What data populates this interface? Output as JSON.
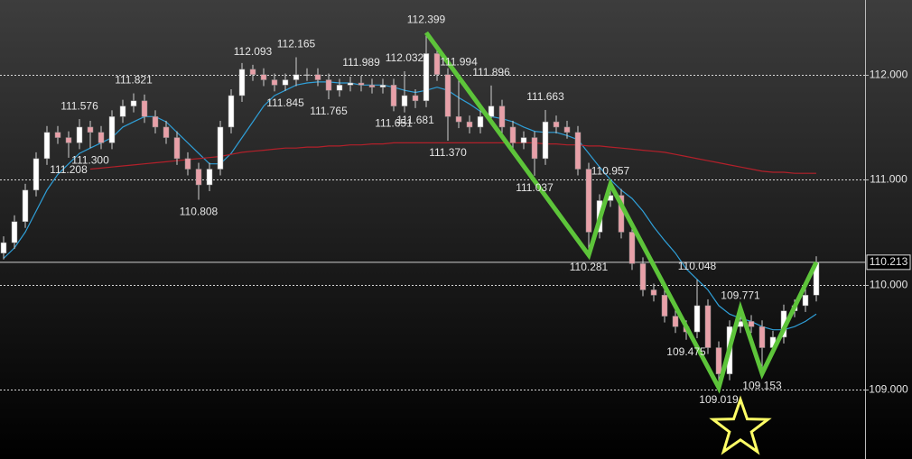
{
  "chart_data": {
    "type": "candlestick",
    "ylim": [
      108.34,
      112.71
    ],
    "xlim": [
      -0.333,
      79.5
    ],
    "yticks": [
      {
        "value": 109,
        "label": "109.000"
      },
      {
        "value": 110,
        "label": "110.000"
      },
      {
        "value": 111,
        "label": "111.000"
      },
      {
        "value": 112,
        "label": "112.000"
      }
    ],
    "grid": true,
    "up_color": "#ffffff",
    "down_color": "#e8a0a8",
    "open": [
      110.3,
      110.4,
      110.6,
      110.9,
      111.2,
      111.45,
      111.4,
      111.35,
      111.5,
      111.45,
      111.35,
      111.6,
      111.7,
      111.75,
      111.6,
      111.5,
      111.4,
      111.2,
      111.1,
      110.95,
      111.1,
      111.5,
      111.8,
      112.05,
      112.0,
      111.95,
      111.9,
      111.95,
      112.0,
      112.0,
      111.95,
      111.85,
      111.9,
      111.92,
      111.9,
      111.88,
      111.9,
      111.7,
      111.8,
      111.75,
      112.2,
      112.0,
      111.6,
      111.55,
      111.5,
      111.6,
      111.7,
      111.5,
      111.35,
      111.4,
      111.2,
      111.55,
      111.5,
      111.45,
      111.1,
      110.5,
      110.8,
      110.85,
      110.5,
      110.2,
      109.95,
      109.9,
      109.7,
      109.6,
      109.55,
      109.8,
      109.4,
      109.15,
      109.6,
      109.65,
      109.6,
      109.4,
      109.5,
      109.75,
      109.8,
      109.9
    ],
    "high": [
      110.46,
      110.66,
      110.96,
      111.26,
      111.51,
      111.51,
      111.46,
      111.576,
      111.56,
      111.51,
      111.66,
      111.76,
      111.821,
      111.81,
      111.66,
      111.56,
      111.46,
      111.26,
      111.16,
      111.16,
      111.56,
      111.86,
      112.11,
      112.093,
      112.06,
      112.01,
      112.01,
      112.165,
      112.06,
      112.06,
      112.01,
      111.96,
      111.98,
      111.989,
      111.96,
      111.96,
      111.96,
      112.032,
      111.86,
      112.399,
      112.26,
      112.06,
      111.994,
      111.61,
      111.66,
      111.896,
      111.76,
      111.56,
      111.46,
      111.46,
      111.663,
      111.61,
      111.56,
      111.51,
      111.16,
      110.86,
      110.957,
      110.91,
      110.56,
      110.26,
      110.01,
      109.96,
      109.76,
      109.66,
      110.048,
      109.86,
      109.46,
      109.66,
      109.771,
      109.71,
      109.66,
      109.56,
      109.81,
      109.86,
      109.96,
      110.27
    ],
    "low": [
      110.24,
      110.34,
      110.54,
      110.84,
      111.14,
      111.34,
      111.208,
      111.29,
      111.3,
      111.29,
      111.29,
      111.54,
      111.64,
      111.54,
      111.44,
      111.34,
      111.14,
      111.04,
      110.808,
      110.89,
      111.04,
      111.44,
      111.74,
      111.94,
      111.89,
      111.84,
      111.845,
      111.89,
      111.94,
      111.89,
      111.765,
      111.79,
      111.84,
      111.84,
      111.82,
      111.82,
      111.651,
      111.64,
      111.681,
      111.69,
      111.94,
      111.37,
      111.49,
      111.44,
      111.44,
      111.54,
      111.44,
      111.29,
      111.29,
      111.037,
      111.14,
      111.44,
      111.39,
      111.04,
      110.281,
      110.44,
      110.74,
      110.44,
      110.14,
      109.89,
      109.84,
      109.64,
      109.54,
      109.475,
      109.49,
      109.34,
      109.019,
      109.09,
      109.54,
      109.54,
      109.153,
      109.34,
      109.44,
      109.69,
      109.74,
      109.84
    ],
    "close": [
      110.4,
      110.6,
      110.9,
      111.2,
      111.45,
      111.4,
      111.35,
      111.5,
      111.45,
      111.35,
      111.6,
      111.7,
      111.75,
      111.6,
      111.5,
      111.4,
      111.2,
      111.1,
      110.95,
      111.1,
      111.5,
      111.8,
      112.05,
      112.0,
      111.95,
      111.9,
      111.95,
      112.0,
      112.0,
      111.95,
      111.85,
      111.9,
      111.92,
      111.9,
      111.88,
      111.9,
      111.7,
      111.8,
      111.75,
      112.2,
      112.0,
      111.6,
      111.55,
      111.5,
      111.6,
      111.7,
      111.5,
      111.35,
      111.4,
      111.2,
      111.55,
      111.5,
      111.45,
      111.1,
      110.5,
      110.8,
      110.85,
      110.5,
      110.2,
      109.95,
      109.9,
      109.7,
      109.6,
      109.55,
      109.8,
      109.4,
      109.15,
      109.6,
      109.65,
      109.6,
      109.4,
      109.5,
      109.75,
      109.8,
      109.9,
      110.213
    ],
    "series": [
      {
        "color": "#2f9fd8",
        "values": [
          110.25,
          110.35,
          110.5,
          110.7,
          110.9,
          111.05,
          111.15,
          111.25,
          111.3,
          111.35,
          111.4,
          111.5,
          111.55,
          111.6,
          111.6,
          111.55,
          111.45,
          111.35,
          111.25,
          111.15,
          111.15,
          111.25,
          111.4,
          111.55,
          111.7,
          111.8,
          111.85,
          111.9,
          111.92,
          111.93,
          111.93,
          111.92,
          111.92,
          111.9,
          111.9,
          111.9,
          111.88,
          111.85,
          111.83,
          111.85,
          111.88,
          111.85,
          111.78,
          111.72,
          111.65,
          111.6,
          111.58,
          111.55,
          111.5,
          111.46,
          111.45,
          111.45,
          111.42,
          111.38,
          111.25,
          111.12,
          111.0,
          110.9,
          110.82,
          110.7,
          110.55,
          110.42,
          110.3,
          110.15,
          110.05,
          109.95,
          109.8,
          109.72,
          109.68,
          109.65,
          109.6,
          109.57,
          109.57,
          109.6,
          109.65,
          109.72
        ]
      },
      {
        "color": "#b3202a",
        "values": [
          null,
          null,
          null,
          null,
          null,
          null,
          null,
          null,
          111.1,
          111.11,
          111.12,
          111.13,
          111.14,
          111.15,
          111.16,
          111.17,
          111.18,
          111.19,
          111.2,
          111.21,
          111.22,
          111.24,
          111.26,
          111.27,
          111.28,
          111.29,
          111.3,
          111.3,
          111.31,
          111.31,
          111.32,
          111.32,
          111.33,
          111.33,
          111.34,
          111.34,
          111.35,
          111.35,
          111.35,
          111.35,
          111.35,
          111.35,
          111.35,
          111.35,
          111.35,
          111.35,
          111.35,
          111.35,
          111.35,
          111.35,
          111.34,
          111.34,
          111.33,
          111.33,
          111.32,
          111.32,
          111.31,
          111.3,
          111.29,
          111.28,
          111.27,
          111.26,
          111.24,
          111.22,
          111.2,
          111.18,
          111.16,
          111.14,
          111.12,
          111.1,
          111.08,
          111.07,
          111.07,
          111.06,
          111.06,
          111.06
        ]
      }
    ],
    "zigzag": {
      "color": "#5dc43a",
      "x": [
        39,
        54,
        56,
        66,
        68,
        70,
        75
      ],
      "values": [
        112.399,
        110.281,
        110.957,
        109.019,
        109.771,
        109.153,
        110.213
      ]
    },
    "annotations": {
      "x": [
        39,
        27,
        23,
        37,
        42,
        33,
        45,
        12,
        50,
        7,
        26,
        30,
        36,
        38,
        41,
        8,
        6,
        18,
        49,
        56,
        54,
        64,
        68,
        63,
        66,
        70
      ],
      "values": [
        112.399,
        112.165,
        112.093,
        112.032,
        111.994,
        111.989,
        111.896,
        111.821,
        111.663,
        111.576,
        111.845,
        111.765,
        111.651,
        111.681,
        111.37,
        111.3,
        111.208,
        110.808,
        111.037,
        110.957,
        110.281,
        110.048,
        109.771,
        109.475,
        109.019,
        109.153
      ],
      "value_labels": [
        "112.399",
        "112.165",
        "112.093",
        "112.032",
        "111.994",
        "111.989",
        "111.896",
        "111.821",
        "111.663",
        "111.576",
        "111.845",
        "111.765",
        "111.651",
        "111.681",
        "111.370",
        "111.300",
        "111.208",
        "110.808",
        "111.037",
        "110.957",
        "110.281",
        "110.048",
        "109.771",
        "109.475",
        "109.019",
        "109.153"
      ]
    },
    "last_price": 110.213
  }
}
